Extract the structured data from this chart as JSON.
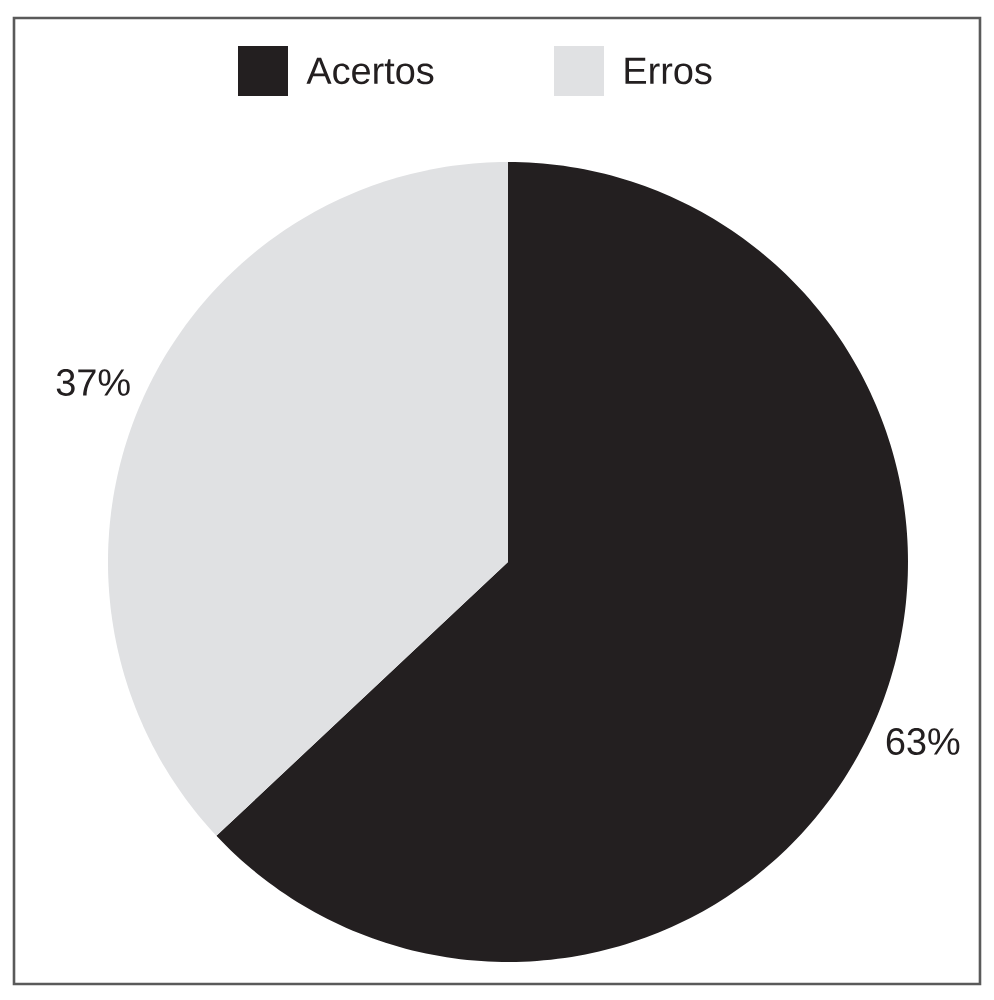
{
  "chart_data": {
    "type": "pie",
    "categories": [
      "Acertos",
      "Erros"
    ],
    "values": [
      63,
      37
    ],
    "colors": [
      "#231f20",
      "#e0e1e3"
    ],
    "value_labels": [
      "63%",
      "37%"
    ],
    "legend": "top"
  }
}
